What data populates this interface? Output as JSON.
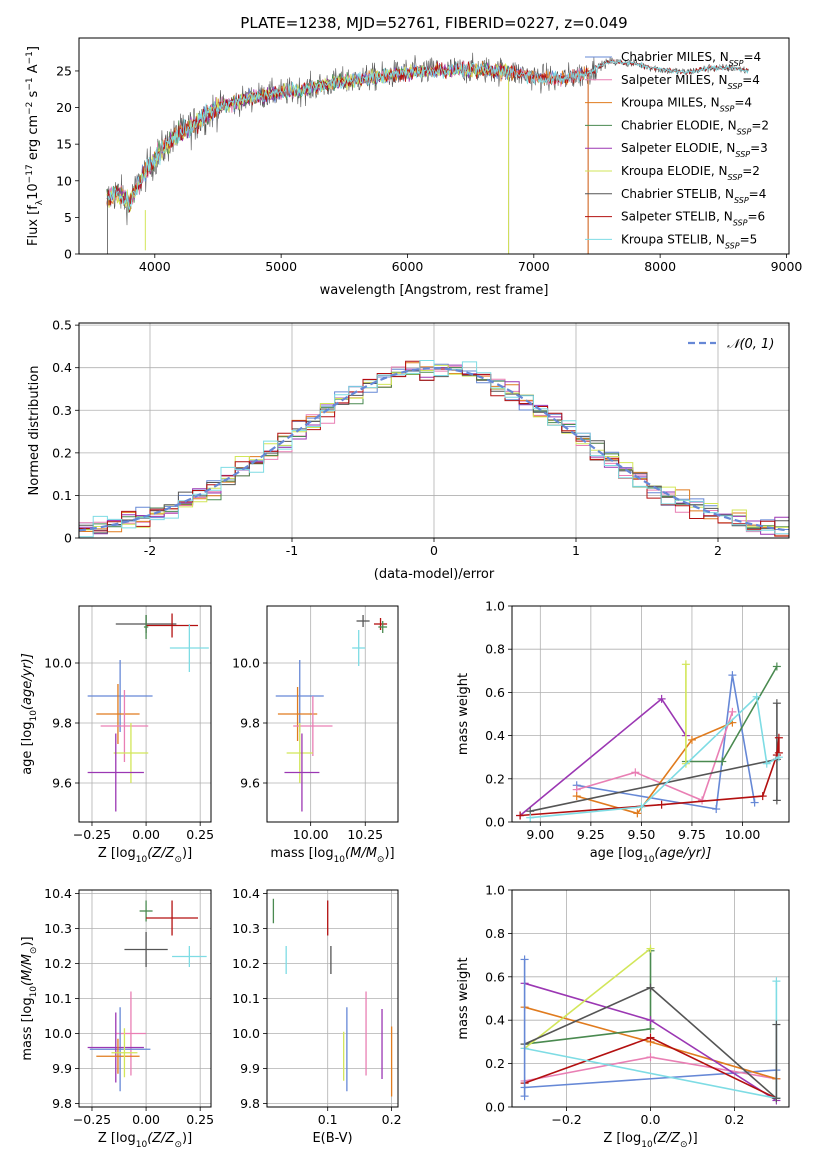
{
  "figure": {
    "title": "PLATE=1238, MJD=52761, FIBERID=0227, z=0.049"
  },
  "chart_data": [
    {
      "type": "line",
      "id": "spectrum",
      "xlabel": "wavelength [Angstrom, rest frame]",
      "ylabel": "Flux [f",
      "ylabel_parts": [
        "Flux [f",
        "λ",
        "10",
        "−17",
        " erg cm",
        "−2",
        " s",
        "−1",
        " A",
        "−1",
        "]"
      ],
      "xlim": [
        3400,
        9020
      ],
      "ylim": [
        0,
        29.5
      ],
      "xticks": [
        4000,
        5000,
        6000,
        7000,
        8000,
        9000
      ],
      "yticks": [
        0,
        5,
        10,
        15,
        20,
        25
      ],
      "grid": false,
      "legend_position": "upper-right",
      "continuum": {
        "x": [
          3620,
          3700,
          3800,
          3900,
          4000,
          4100,
          4200,
          4300,
          4400,
          4500,
          4600,
          4800,
          5000,
          5200,
          5400,
          5600,
          5800,
          6000,
          6200,
          6400,
          6600,
          6800,
          7000,
          7200,
          7400,
          7600,
          7800,
          8000,
          8200,
          8400,
          8600,
          8700
        ],
        "y": [
          7.5,
          8.5,
          7.0,
          10.5,
          13.0,
          15.0,
          16.5,
          17.5,
          19.0,
          20.0,
          20.5,
          21.5,
          22.0,
          22.5,
          23.3,
          23.8,
          24.3,
          24.8,
          25.0,
          25.1,
          25.2,
          24.9,
          24.2,
          23.8,
          24.6,
          26.3,
          26.0,
          25.2,
          24.8,
          25.4,
          25.4,
          25.0
        ]
      },
      "series": [
        {
          "name": "Chabrier MILES, N",
          "sub": "SSP",
          "n": "=4",
          "color": "#6688d6",
          "range": [
            3620,
            7430
          ]
        },
        {
          "name": "Salpeter MILES, N",
          "sub": "SSP",
          "n": "=4",
          "color": "#e97fb4",
          "range": [
            3620,
            7430
          ]
        },
        {
          "name": "Kroupa MILES, N",
          "sub": "SSP",
          "n": "=4",
          "color": "#e07b1e",
          "range": [
            3620,
            7430
          ]
        },
        {
          "name": "Chabrier ELODIE, N",
          "sub": "SSP",
          "n": "=2",
          "color": "#4a8a50",
          "range": [
            3620,
            6800
          ]
        },
        {
          "name": "Salpeter ELODIE, N",
          "sub": "SSP",
          "n": "=3",
          "color": "#9b37b3",
          "range": [
            3620,
            6800
          ]
        },
        {
          "name": "Kroupa ELODIE, N",
          "sub": "SSP",
          "n": "=2",
          "color": "#d2e659",
          "range": [
            3620,
            6800
          ]
        },
        {
          "name": "Chabrier STELIB, N",
          "sub": "SSP",
          "n": "=4",
          "color": "#555555",
          "range": [
            3620,
            8700
          ]
        },
        {
          "name": "Salpeter STELIB, N",
          "sub": "SSP",
          "n": "=6",
          "color": "#b31010",
          "range": [
            3620,
            8700
          ]
        },
        {
          "name": "Kroupa STELIB, N",
          "sub": "SSP",
          "n": "=5",
          "color": "#7edce4",
          "range": [
            3620,
            8700
          ]
        }
      ]
    },
    {
      "type": "histogram",
      "id": "residuals",
      "xlabel": "(data-model)/error",
      "ylabel": "Normed distribution",
      "xlim": [
        -2.5,
        2.5
      ],
      "ylim": [
        0,
        0.505
      ],
      "xticks": [
        -2,
        -1,
        0,
        1,
        2
      ],
      "yticks": [
        0.0,
        0.1,
        0.2,
        0.3,
        0.4,
        0.5
      ],
      "grid": true,
      "legend_position": "upper-right",
      "reference_curve": {
        "name": "𝒩(0, 1)",
        "color": "#6688d6",
        "style": "dashed"
      },
      "bin_width": 0.1
    },
    {
      "type": "scatter",
      "id": "age-vs-Z",
      "xlabel": "Z [log",
      "xlabel_parts": [
        "Z [log",
        "10",
        "(Z/Z",
        "⊙",
        ")]"
      ],
      "ylabel_parts": [
        "age  [log",
        "10",
        "(age/yr)]"
      ],
      "xlim": [
        -0.31,
        0.3
      ],
      "ylim": [
        9.47,
        10.19
      ],
      "xticks": [
        -0.25,
        0.0,
        0.25
      ],
      "xtick_labels": [
        "−0.25",
        "0.00",
        "0.25"
      ],
      "yticks": [
        9.6,
        9.8,
        10.0
      ],
      "ytick_labels": [
        "9.6",
        "9.8",
        "10.0"
      ],
      "grid": true,
      "points": [
        {
          "x": 0.0,
          "y": 10.13,
          "xerr": 0.14,
          "yerr": 0.03,
          "color": "#555555"
        },
        {
          "x": 0.12,
          "y": 10.125,
          "xerr": 0.12,
          "yerr": 0.04,
          "color": "#b31010"
        },
        {
          "x": 0.0,
          "y": 10.12,
          "xerr": 0.01,
          "yerr": 0.04,
          "color": "#4a8a50"
        },
        {
          "x": 0.2,
          "y": 10.05,
          "xerr": 0.09,
          "yerr": 0.08,
          "color": "#7edce4"
        },
        {
          "x": -0.12,
          "y": 9.89,
          "xerr": 0.15,
          "yerr": 0.12,
          "color": "#6688d6"
        },
        {
          "x": -0.13,
          "y": 9.83,
          "xerr": 0.1,
          "yerr": 0.1,
          "color": "#e07b1e"
        },
        {
          "x": -0.1,
          "y": 9.79,
          "xerr": 0.11,
          "yerr": 0.12,
          "color": "#e97fb4"
        },
        {
          "x": -0.07,
          "y": 9.7,
          "xerr": 0.08,
          "yerr": 0.1,
          "color": "#d2e659"
        },
        {
          "x": -0.14,
          "y": 9.635,
          "xerr": 0.13,
          "yerr": 0.13,
          "color": "#9b37b3"
        }
      ]
    },
    {
      "type": "scatter",
      "id": "age-vs-mass",
      "xlabel_parts": [
        "mass [log",
        "10",
        "(M/M",
        "⊙",
        ")]"
      ],
      "xlim": [
        9.8,
        10.4
      ],
      "ylim": [
        9.47,
        10.19
      ],
      "xticks": [
        10.0,
        10.25
      ],
      "xtick_labels": [
        "10.00",
        "10.25"
      ],
      "yticks": [
        9.6,
        9.8,
        10.0
      ],
      "ytick_labels": [
        "9.6",
        "9.8",
        "10.0"
      ],
      "grid": true,
      "points": [
        {
          "x": 10.24,
          "y": 10.14,
          "xerr": 0.03,
          "yerr": 0.02,
          "color": "#555555"
        },
        {
          "x": 10.32,
          "y": 10.13,
          "xerr": 0.03,
          "yerr": 0.02,
          "color": "#b31010"
        },
        {
          "x": 10.33,
          "y": 10.12,
          "xerr": 0.02,
          "yerr": 0.02,
          "color": "#4a8a50"
        },
        {
          "x": 10.22,
          "y": 10.05,
          "xerr": 0.03,
          "yerr": 0.06,
          "color": "#7edce4"
        },
        {
          "x": 9.95,
          "y": 9.89,
          "xerr": 0.11,
          "yerr": 0.12,
          "color": "#6688d6"
        },
        {
          "x": 9.94,
          "y": 9.83,
          "xerr": 0.09,
          "yerr": 0.09,
          "color": "#e07b1e"
        },
        {
          "x": 10.01,
          "y": 9.79,
          "xerr": 0.09,
          "yerr": 0.1,
          "color": "#e97fb4"
        },
        {
          "x": 9.95,
          "y": 9.7,
          "xerr": 0.06,
          "yerr": 0.1,
          "color": "#d2e659"
        },
        {
          "x": 9.96,
          "y": 9.635,
          "xerr": 0.08,
          "yerr": 0.13,
          "color": "#9b37b3"
        }
      ]
    },
    {
      "type": "line",
      "id": "massweight-vs-age",
      "xlabel_parts": [
        "age  [log",
        "10",
        "(age/yr)]"
      ],
      "ylabel": "mass weight",
      "xlim": [
        8.86,
        10.23
      ],
      "ylim": [
        0,
        1.0
      ],
      "xticks": [
        9.0,
        9.25,
        9.5,
        9.75,
        10.0
      ],
      "xtick_labels": [
        "9.00",
        "9.25",
        "9.50",
        "9.75",
        "10.00"
      ],
      "yticks": [
        0.0,
        0.2,
        0.4,
        0.6,
        0.8,
        1.0
      ],
      "ytick_labels": [
        "0.0",
        "0.2",
        "0.4",
        "0.6",
        "0.8",
        "1.0"
      ],
      "grid": true,
      "series": [
        {
          "color": "#6688d6",
          "x": [
            9.18,
            9.87,
            9.95,
            10.06
          ],
          "y": [
            0.17,
            0.06,
            0.68,
            0.09
          ]
        },
        {
          "color": "#e97fb4",
          "x": [
            9.18,
            9.47,
            9.8,
            9.95
          ],
          "y": [
            0.15,
            0.23,
            0.1,
            0.51
          ]
        },
        {
          "color": "#e07b1e",
          "x": [
            9.18,
            9.48,
            9.75,
            9.95
          ],
          "y": [
            0.12,
            0.04,
            0.38,
            0.46
          ]
        },
        {
          "color": "#4a8a50",
          "x": [
            9.72,
            9.9,
            10.17
          ],
          "y": [
            0.28,
            0.28,
            0.72
          ]
        },
        {
          "color": "#9b37b3",
          "x": [
            8.9,
            9.6,
            9.72
          ],
          "y": [
            0.03,
            0.57,
            0.4
          ]
        },
        {
          "color": "#d2e659",
          "x": [
            9.72,
            9.72
          ],
          "y": [
            0.27,
            0.73
          ]
        },
        {
          "color": "#555555",
          "x": [
            8.95,
            10.17,
            10.17,
            10.17
          ],
          "y": [
            0.05,
            0.29,
            0.55,
            0.1
          ]
        },
        {
          "color": "#b31010",
          "x": [
            8.9,
            9.6,
            10.1,
            10.17,
            10.18,
            10.18
          ],
          "y": [
            0.03,
            0.08,
            0.12,
            0.31,
            0.39,
            0.32
          ]
        },
        {
          "color": "#7edce4",
          "x": [
            8.95,
            9.5,
            10.07,
            10.12,
            10.18
          ],
          "y": [
            0.02,
            0.07,
            0.58,
            0.27,
            0.3
          ]
        }
      ]
    },
    {
      "type": "scatter",
      "id": "mass-vs-Z",
      "xlabel_parts": [
        "Z [log",
        "10",
        "(Z/Z",
        "⊙",
        ")]"
      ],
      "ylabel_parts": [
        "mass [log",
        "10",
        "(M/M",
        "⊙",
        ")]"
      ],
      "xlim": [
        -0.31,
        0.3
      ],
      "ylim": [
        9.79,
        10.41
      ],
      "xticks": [
        -0.25,
        0.0,
        0.25
      ],
      "xtick_labels": [
        "−0.25",
        "0.00",
        "0.25"
      ],
      "yticks": [
        9.8,
        9.9,
        10.0,
        10.1,
        10.2,
        10.3,
        10.4
      ],
      "ytick_labels": [
        "9.8",
        "9.9",
        "10.0",
        "10.1",
        "10.2",
        "10.3",
        "10.4"
      ],
      "grid": true,
      "points": [
        {
          "x": 0.0,
          "y": 10.35,
          "xerr": 0.03,
          "yerr": 0.03,
          "color": "#4a8a50"
        },
        {
          "x": 0.12,
          "y": 10.33,
          "xerr": 0.12,
          "yerr": 0.05,
          "color": "#b31010"
        },
        {
          "x": 0.0,
          "y": 10.24,
          "xerr": 0.1,
          "yerr": 0.05,
          "color": "#555555"
        },
        {
          "x": 0.2,
          "y": 10.22,
          "xerr": 0.08,
          "yerr": 0.03,
          "color": "#7edce4"
        },
        {
          "x": -0.07,
          "y": 10.0,
          "xerr": 0.07,
          "yerr": 0.12,
          "color": "#e97fb4"
        },
        {
          "x": -0.12,
          "y": 9.955,
          "xerr": 0.14,
          "yerr": 0.12,
          "color": "#6688d6"
        },
        {
          "x": -0.14,
          "y": 9.96,
          "xerr": 0.13,
          "yerr": 0.1,
          "color": "#9b37b3"
        },
        {
          "x": -0.13,
          "y": 9.935,
          "xerr": 0.1,
          "yerr": 0.05,
          "color": "#e07b1e"
        },
        {
          "x": -0.1,
          "y": 9.945,
          "xerr": 0.06,
          "yerr": 0.07,
          "color": "#d2e659"
        }
      ]
    },
    {
      "type": "scatter",
      "id": "mass-vs-EBV",
      "xlabel": "E(B-V)",
      "xlim": [
        0.005,
        0.21
      ],
      "ylim": [
        9.79,
        10.41
      ],
      "xticks": [
        0.1,
        0.2
      ],
      "xtick_labels": [
        "0.1",
        "0.2"
      ],
      "yticks": [
        9.8,
        9.9,
        10.0,
        10.1,
        10.2,
        10.3,
        10.4
      ],
      "ytick_labels": [
        "9.8",
        "9.9",
        "10.0",
        "10.1",
        "10.2",
        "10.3",
        "10.4"
      ],
      "grid": true,
      "points": [
        {
          "x": 0.015,
          "y": 10.35,
          "xerr": 0,
          "yerr": 0.035,
          "color": "#4a8a50"
        },
        {
          "x": 0.1,
          "y": 10.33,
          "xerr": 0,
          "yerr": 0.05,
          "color": "#b31010"
        },
        {
          "x": 0.105,
          "y": 10.21,
          "xerr": 0,
          "yerr": 0.04,
          "color": "#555555"
        },
        {
          "x": 0.035,
          "y": 10.21,
          "xerr": 0,
          "yerr": 0.04,
          "color": "#7edce4"
        },
        {
          "x": 0.16,
          "y": 10.0,
          "xerr": 0,
          "yerr": 0.12,
          "color": "#e97fb4"
        },
        {
          "x": 0.13,
          "y": 9.955,
          "xerr": 0,
          "yerr": 0.12,
          "color": "#6688d6"
        },
        {
          "x": 0.185,
          "y": 9.97,
          "xerr": 0,
          "yerr": 0.1,
          "color": "#9b37b3"
        },
        {
          "x": 0.2,
          "y": 9.92,
          "xerr": 0,
          "yerr": 0.1,
          "color": "#e07b1e"
        },
        {
          "x": 0.125,
          "y": 9.935,
          "xerr": 0,
          "yerr": 0.07,
          "color": "#d2e659"
        }
      ]
    },
    {
      "type": "line",
      "id": "massweight-vs-Z",
      "xlabel_parts": [
        "Z [log",
        "10",
        "(Z/Z",
        "⊙",
        ")]"
      ],
      "ylabel": "mass weight",
      "xlim": [
        -0.33,
        0.33
      ],
      "ylim": [
        0,
        1.0
      ],
      "xticks": [
        -0.2,
        0.0,
        0.2
      ],
      "xtick_labels": [
        "−0.2",
        "0.0",
        "0.2"
      ],
      "yticks": [
        0.0,
        0.2,
        0.4,
        0.6,
        0.8,
        1.0
      ],
      "ytick_labels": [
        "0.0",
        "0.2",
        "0.4",
        "0.6",
        "0.8",
        "1.0"
      ],
      "grid": true,
      "series": [
        {
          "color": "#6688d6",
          "x": [
            -0.3,
            0.3
          ],
          "y": [
            0.09,
            0.17
          ]
        },
        {
          "color": "#e97fb4",
          "x": [
            -0.3,
            0.0,
            0.3
          ],
          "y": [
            0.12,
            0.23,
            0.13
          ]
        },
        {
          "color": "#e07b1e",
          "x": [
            -0.3,
            0.0,
            0.3
          ],
          "y": [
            0.46,
            0.3,
            0.13
          ]
        },
        {
          "color": "#4a8a50",
          "x": [
            -0.3,
            0.0,
            0.0
          ],
          "y": [
            0.29,
            0.36,
            0.72
          ]
        },
        {
          "color": "#9b37b3",
          "x": [
            -0.3,
            0.0,
            0.3
          ],
          "y": [
            0.57,
            0.4,
            0.03
          ]
        },
        {
          "color": "#d2e659",
          "x": [
            -0.3,
            0.0
          ],
          "y": [
            0.27,
            0.73
          ]
        },
        {
          "color": "#555555",
          "x": [
            -0.3,
            0.0,
            0.3
          ],
          "y": [
            0.29,
            0.55,
            0.04
          ]
        },
        {
          "color": "#b31010",
          "x": [
            -0.3,
            0.0,
            0.3
          ],
          "y": [
            0.11,
            0.32,
            0.04
          ]
        },
        {
          "color": "#7edce4",
          "x": [
            -0.3,
            0.3
          ],
          "y": [
            0.27,
            0.04
          ]
        },
        {
          "color": "#7edce4",
          "x": [
            0.3,
            0.3
          ],
          "y": [
            0.04,
            0.58
          ]
        },
        {
          "color": "#6688d6",
          "x": [
            -0.3,
            -0.3
          ],
          "y": [
            0.05,
            0.68
          ]
        },
        {
          "color": "#555555",
          "x": [
            0.3,
            0.3
          ],
          "y": [
            0.04,
            0.38
          ]
        }
      ]
    }
  ]
}
